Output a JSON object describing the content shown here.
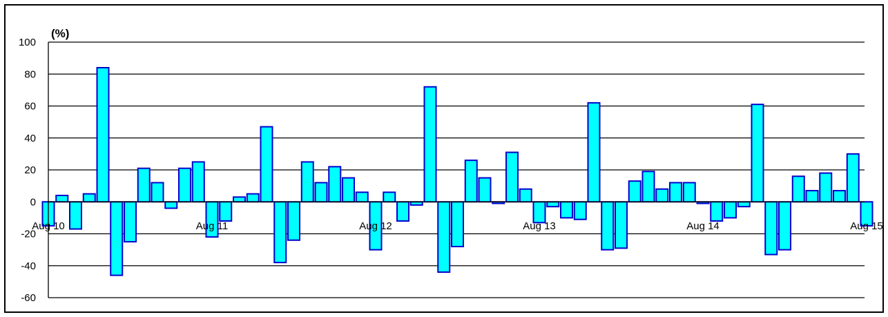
{
  "chart_data": {
    "type": "bar",
    "ylabel": "(%)",
    "ylim": [
      -60,
      100
    ],
    "y_ticks": [
      -60,
      -40,
      -20,
      0,
      20,
      40,
      60,
      80,
      100
    ],
    "x_labels": [
      "Aug 10",
      "Aug 11",
      "Aug 12",
      "Aug 13",
      "Aug 14",
      "Aug 15"
    ],
    "grid": true,
    "legend": "none",
    "bar_color": "#00ffff",
    "bar_edge_color": "#0000cc",
    "values": [
      -15,
      4,
      -17,
      5,
      84,
      -46,
      -25,
      21,
      12,
      -4,
      21,
      25,
      -22,
      -12,
      3,
      5,
      47,
      -38,
      -24,
      25,
      12,
      22,
      15,
      6,
      -30,
      6,
      -12,
      -2,
      72,
      -44,
      -28,
      26,
      15,
      -1,
      31,
      8,
      -13,
      -3,
      -10,
      -11,
      62,
      -30,
      -29,
      13,
      19,
      8,
      12,
      12,
      -1,
      -12,
      -10,
      -3,
      61,
      -33,
      -30,
      16,
      7,
      18,
      7,
      30,
      -15
    ]
  }
}
